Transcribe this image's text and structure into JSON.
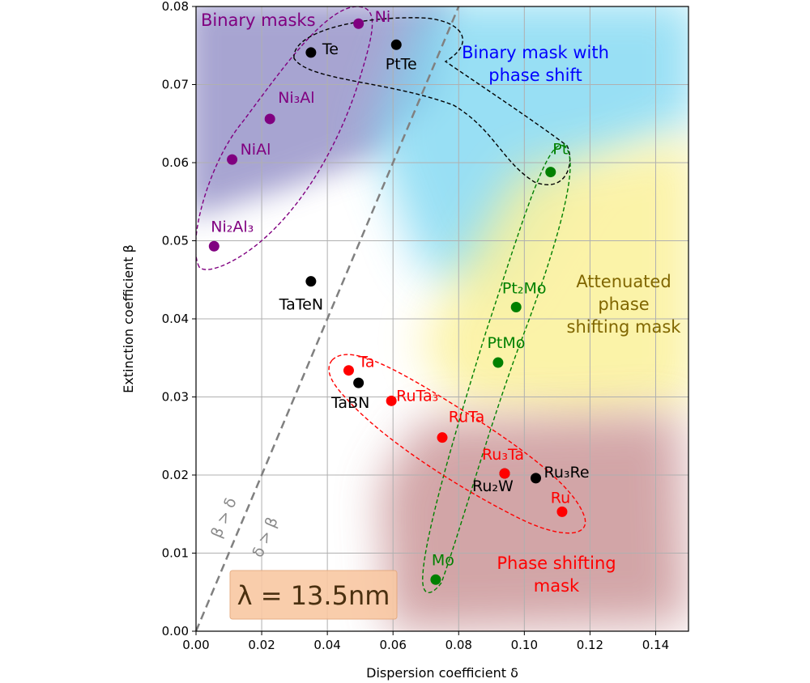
{
  "chart_data": {
    "type": "scatter",
    "xlabel": "Dispersion coefficient δ",
    "ylabel": "Extinction coefficient β",
    "xlim": [
      0.0,
      0.15
    ],
    "ylim": [
      0.0,
      0.08
    ],
    "xticks": [
      "0.00",
      "0.02",
      "0.04",
      "0.06",
      "0.08",
      "0.10",
      "0.12",
      "0.14"
    ],
    "yticks": [
      "0.00",
      "0.01",
      "0.02",
      "0.03",
      "0.04",
      "0.05",
      "0.06",
      "0.07",
      "0.08"
    ],
    "grid": true,
    "points": [
      {
        "name": "Ni",
        "x": 0.0495,
        "y": 0.0778,
        "color": "#800080"
      },
      {
        "name": "Ni₃Al",
        "x": 0.0225,
        "y": 0.0656,
        "color": "#800080"
      },
      {
        "name": "NiAl",
        "x": 0.011,
        "y": 0.0604,
        "color": "#800080"
      },
      {
        "name": "Ni₂Al₃",
        "x": 0.0055,
        "y": 0.0493,
        "color": "#800080"
      },
      {
        "name": "Te",
        "x": 0.035,
        "y": 0.0741,
        "color": "#000000"
      },
      {
        "name": "PtTe",
        "x": 0.061,
        "y": 0.0751,
        "color": "#000000"
      },
      {
        "name": "TaTeN",
        "x": 0.035,
        "y": 0.0448,
        "color": "#000000"
      },
      {
        "name": "TaBN",
        "x": 0.0495,
        "y": 0.0318,
        "color": "#000000"
      },
      {
        "name": "Ru₃Re",
        "x": 0.1035,
        "y": 0.0196,
        "color": "#000000"
      },
      {
        "name": "Ru₂W",
        "x": 0.094,
        "y": 0.0202,
        "color": "#000000"
      },
      {
        "name": "Pt",
        "x": 0.108,
        "y": 0.0588,
        "color": "#008000"
      },
      {
        "name": "Pt₂Mo",
        "x": 0.0975,
        "y": 0.0415,
        "color": "#008000"
      },
      {
        "name": "PtMo",
        "x": 0.092,
        "y": 0.0344,
        "color": "#008000"
      },
      {
        "name": "Mo",
        "x": 0.073,
        "y": 0.0066,
        "color": "#008000"
      },
      {
        "name": "Ta",
        "x": 0.0465,
        "y": 0.0334,
        "color": "#ff0000"
      },
      {
        "name": "RuTa₃",
        "x": 0.0595,
        "y": 0.0295,
        "color": "#ff0000"
      },
      {
        "name": "RuTa",
        "x": 0.075,
        "y": 0.0248,
        "color": "#ff0000"
      },
      {
        "name": "Ru₃Ta",
        "x": 0.094,
        "y": 0.0202,
        "color": "#ff0000"
      },
      {
        "name": "Ru",
        "x": 0.1115,
        "y": 0.0153,
        "color": "#ff0000"
      }
    ],
    "divider_line": {
      "x": [
        0.0,
        0.08
      ],
      "y": [
        0.0,
        0.08
      ],
      "labels": [
        "β > δ",
        "δ > β"
      ]
    },
    "regions": [
      {
        "label": "Binary masks",
        "color": "#800080"
      },
      {
        "label": "Binary mask with phase shift",
        "color": "#0000ff"
      },
      {
        "label": "Attenuated phase shifting mask",
        "color": "#806600"
      },
      {
        "label": "Phase shifting mask",
        "color": "#ff0000"
      }
    ],
    "annotation": "λ = 13.5nm"
  }
}
